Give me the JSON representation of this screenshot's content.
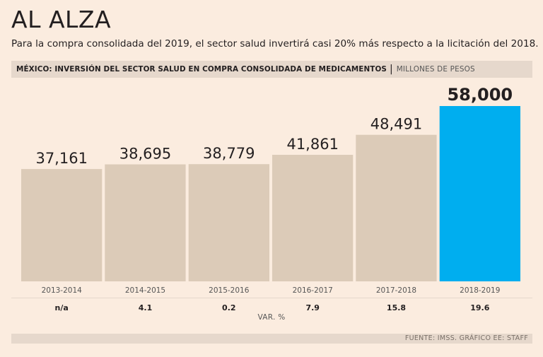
{
  "header": {
    "title": "AL ALZA",
    "subtitle": "Para la compra consolidada del 2019, el sector salud invertirá casi 20% más respecto a la licitación del 2018.",
    "chart_title": "MÉXICO: INVERSIÓN DEL SECTOR SALUD EN COMPRA CONSOLIDADA DE MEDICAMENTOS",
    "divider": "|",
    "unit": "MILLONES DE PESOS"
  },
  "footer": {
    "var_label": "VAR. %",
    "source": "FUENTE: IMSS. GRÁFICO EE: STAFF"
  },
  "colors": {
    "bar": "#dccbb8",
    "highlight": "#00aeef",
    "background": "#fbecdf",
    "band": "#e6d8cc"
  },
  "chart_data": {
    "type": "bar",
    "title": "MÉXICO: INVERSIÓN DEL SECTOR SALUD EN COMPRA CONSOLIDADA DE MEDICAMENTOS",
    "ylabel": "MILLONES DE PESOS",
    "xlabel": "",
    "ylim": [
      0,
      58000
    ],
    "categories": [
      "2013-2014",
      "2014-2015",
      "2015-2016",
      "2016-2017",
      "2017-2018",
      "2018-2019"
    ],
    "values": [
      37161,
      38695,
      38779,
      41861,
      48491,
      58000
    ],
    "value_labels": [
      "37,161",
      "38,695",
      "38,779",
      "41,861",
      "48,491",
      "58,000"
    ],
    "variation_pct": [
      "n/a",
      "4.1",
      "0.2",
      "7.9",
      "15.8",
      "19.6"
    ],
    "highlight_index": 5,
    "grid": false
  }
}
